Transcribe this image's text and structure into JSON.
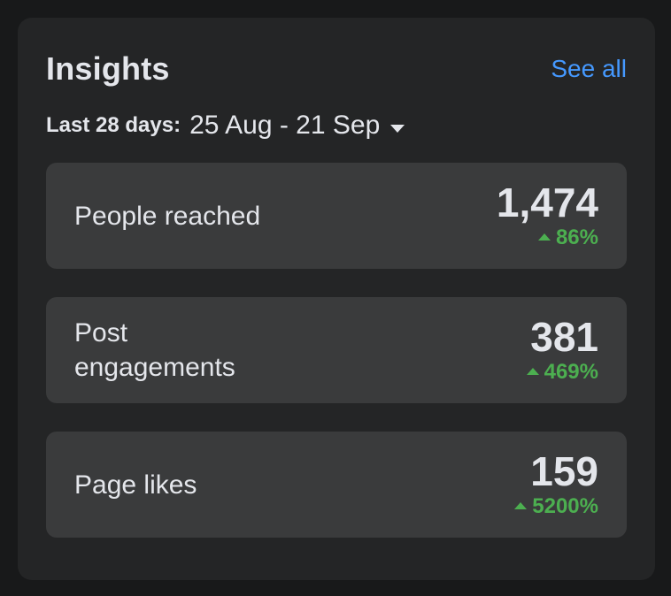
{
  "header": {
    "title": "Insights",
    "see_all": "See all"
  },
  "date_range": {
    "label": "Last 28 days:",
    "value": "25 Aug - 21 Sep",
    "icon": "caret-down-icon"
  },
  "metrics": [
    {
      "label": "People reached",
      "value": "1,474",
      "change": "86%",
      "trend": "up"
    },
    {
      "label": "Post engagements",
      "value": "381",
      "change": "469%",
      "trend": "up"
    },
    {
      "label": "Page likes",
      "value": "159",
      "change": "5200%",
      "trend": "up"
    }
  ],
  "colors": {
    "background": "#18191a",
    "card": "#242526",
    "metric_card": "#3a3b3c",
    "link": "#4599ff",
    "positive": "#4caf50",
    "text": "#e4e6eb"
  }
}
